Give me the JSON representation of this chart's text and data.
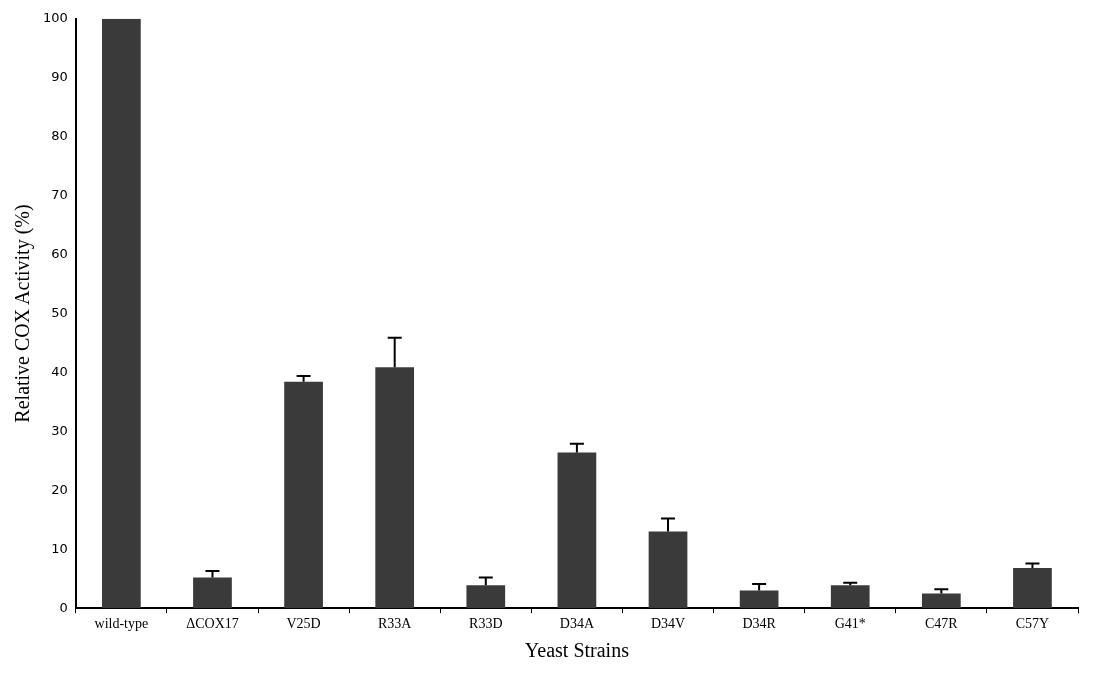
{
  "chart_data": {
    "type": "bar",
    "xlabel": "Yeast Strains",
    "ylabel": "Relative COX Activity (%)",
    "categories": [
      "wild-type",
      "ΔCOX17",
      "V25D",
      "R33A",
      "R33D",
      "D34A",
      "D34V",
      "D34R",
      "G41*",
      "C47R",
      "C57Y"
    ],
    "values": [
      100,
      5.2,
      38.4,
      40.9,
      3.9,
      26.4,
      13.0,
      3.0,
      3.9,
      2.5,
      6.8
    ],
    "errors": [
      null,
      [
        5.2,
        6.3
      ],
      [
        38.4,
        39.4
      ],
      [
        40.9,
        45.9
      ],
      [
        3.9,
        5.2
      ],
      [
        26.4,
        27.9
      ],
      [
        13.0,
        15.2
      ],
      [
        3.0,
        4.1
      ],
      [
        3.9,
        4.3
      ],
      [
        2.5,
        3.2
      ],
      [
        6.8,
        7.6
      ]
    ],
    "color": "#3a3a3a",
    "ylim": [
      0,
      100
    ],
    "yticks": [
      0,
      10,
      20,
      30,
      40,
      50,
      60,
      70,
      80,
      90,
      100
    ],
    "grid": false,
    "legend": false
  }
}
